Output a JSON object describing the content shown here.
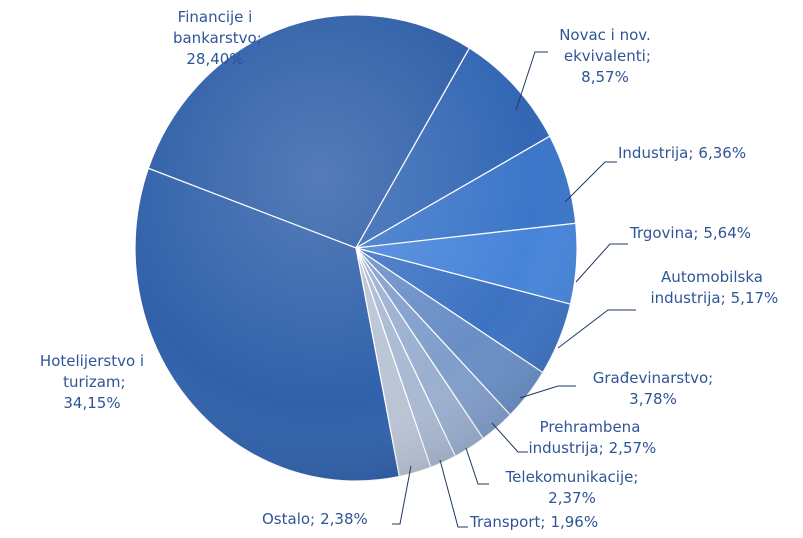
{
  "chart_data": {
    "type": "pie",
    "categories": [
      "Financije i bankarstvo",
      "Novac i nov. ekvivalenti",
      "Industrija",
      "Trgovina",
      "Automobilska industrija",
      "Građevinarstvo",
      "Prehrambena industrija",
      "Telekomunikacije",
      "Transport",
      "Ostalo",
      "Hotelijerstvo i turizam"
    ],
    "values": [
      28.4,
      8.57,
      6.36,
      5.64,
      5.17,
      3.78,
      2.57,
      2.37,
      1.96,
      2.38,
      34.15
    ],
    "value_labels": [
      "28,40%",
      "8,57%",
      "6,36%",
      "5,64%",
      "5,17%",
      "3,78%",
      "2,57%",
      "2,37%",
      "1,96%",
      "2,38%",
      "34,15%"
    ],
    "label_separator": ";",
    "colors": [
      "#2f5fa8",
      "#3367b4",
      "#3b76c9",
      "#4784d9",
      "#3d73c3",
      "#6a8fc6",
      "#819ecb",
      "#9bb0d0",
      "#aabad3",
      "#b9c4d5",
      "#3061aa"
    ]
  }
}
